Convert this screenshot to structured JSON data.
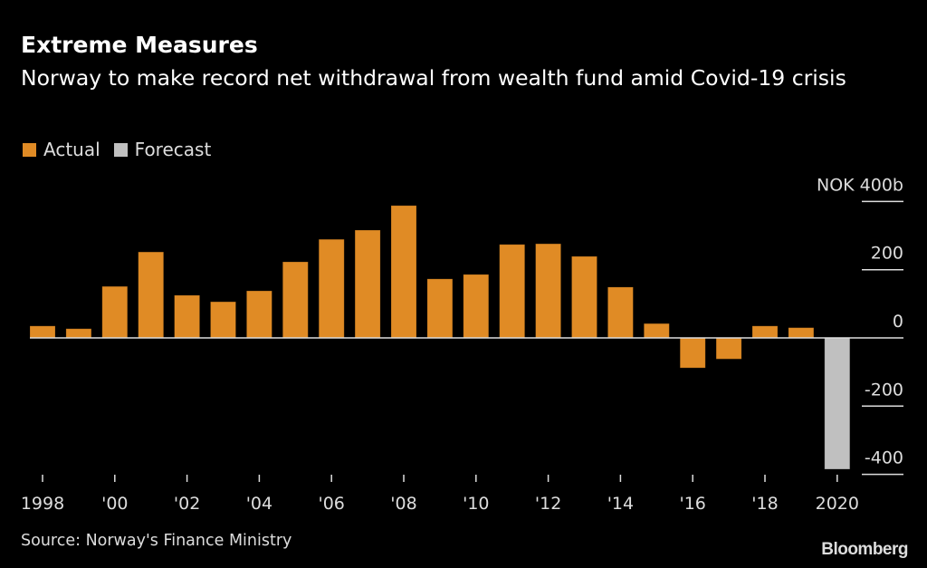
{
  "header": {
    "title": "Extreme Measures",
    "subtitle": "Norway to make record net withdrawal from wealth fund amid Covid-19 crisis"
  },
  "legend": [
    {
      "label": "Actual",
      "color": "#E08B25"
    },
    {
      "label": "Forecast",
      "color": "#C0C0C0"
    }
  ],
  "footer": {
    "source": "Source: Norway's Finance Ministry",
    "brand": "Bloomberg"
  },
  "chart_data": {
    "type": "bar",
    "title": "Extreme Measures",
    "subtitle": "Norway to make record net withdrawal from wealth fund amid Covid-19 crisis",
    "xlabel": "",
    "ylabel": "NOK b",
    "unit_label": "NOK 400b",
    "ylim": [
      -400,
      400
    ],
    "yticks": [
      400,
      200,
      0,
      -200,
      -400
    ],
    "ytick_labels": [
      "NOK 400b",
      "200",
      "0",
      "-200",
      "-400"
    ],
    "grid": true,
    "legend_position": "top-left",
    "categories": [
      "1998",
      "1999",
      "2000",
      "2001",
      "2002",
      "2003",
      "2004",
      "2005",
      "2006",
      "2007",
      "2008",
      "2009",
      "2010",
      "2011",
      "2012",
      "2013",
      "2014",
      "2015",
      "2016",
      "2017",
      "2018",
      "2019",
      "2020"
    ],
    "xtick_labels": [
      {
        "category": "1998",
        "label": "1998"
      },
      {
        "category": "2000",
        "label": "'00"
      },
      {
        "category": "2002",
        "label": "'02"
      },
      {
        "category": "2004",
        "label": "'04"
      },
      {
        "category": "2006",
        "label": "'06"
      },
      {
        "category": "2008",
        "label": "'08"
      },
      {
        "category": "2010",
        "label": "'10"
      },
      {
        "category": "2012",
        "label": "'12"
      },
      {
        "category": "2014",
        "label": "'14"
      },
      {
        "category": "2016",
        "label": "'16"
      },
      {
        "category": "2018",
        "label": "'18"
      },
      {
        "category": "2020",
        "label": "2020"
      }
    ],
    "series": [
      {
        "name": "Actual",
        "color": "#E08B25",
        "values": [
          35,
          27,
          151,
          252,
          125,
          106,
          138,
          223,
          289,
          316,
          388,
          173,
          186,
          274,
          276,
          239,
          149,
          42,
          -88,
          -62,
          35,
          30,
          null
        ]
      },
      {
        "name": "Forecast",
        "color": "#C0C0C0",
        "values": [
          null,
          null,
          null,
          null,
          null,
          null,
          null,
          null,
          null,
          null,
          null,
          null,
          null,
          null,
          null,
          null,
          null,
          null,
          null,
          null,
          null,
          null,
          -385
        ]
      }
    ]
  }
}
